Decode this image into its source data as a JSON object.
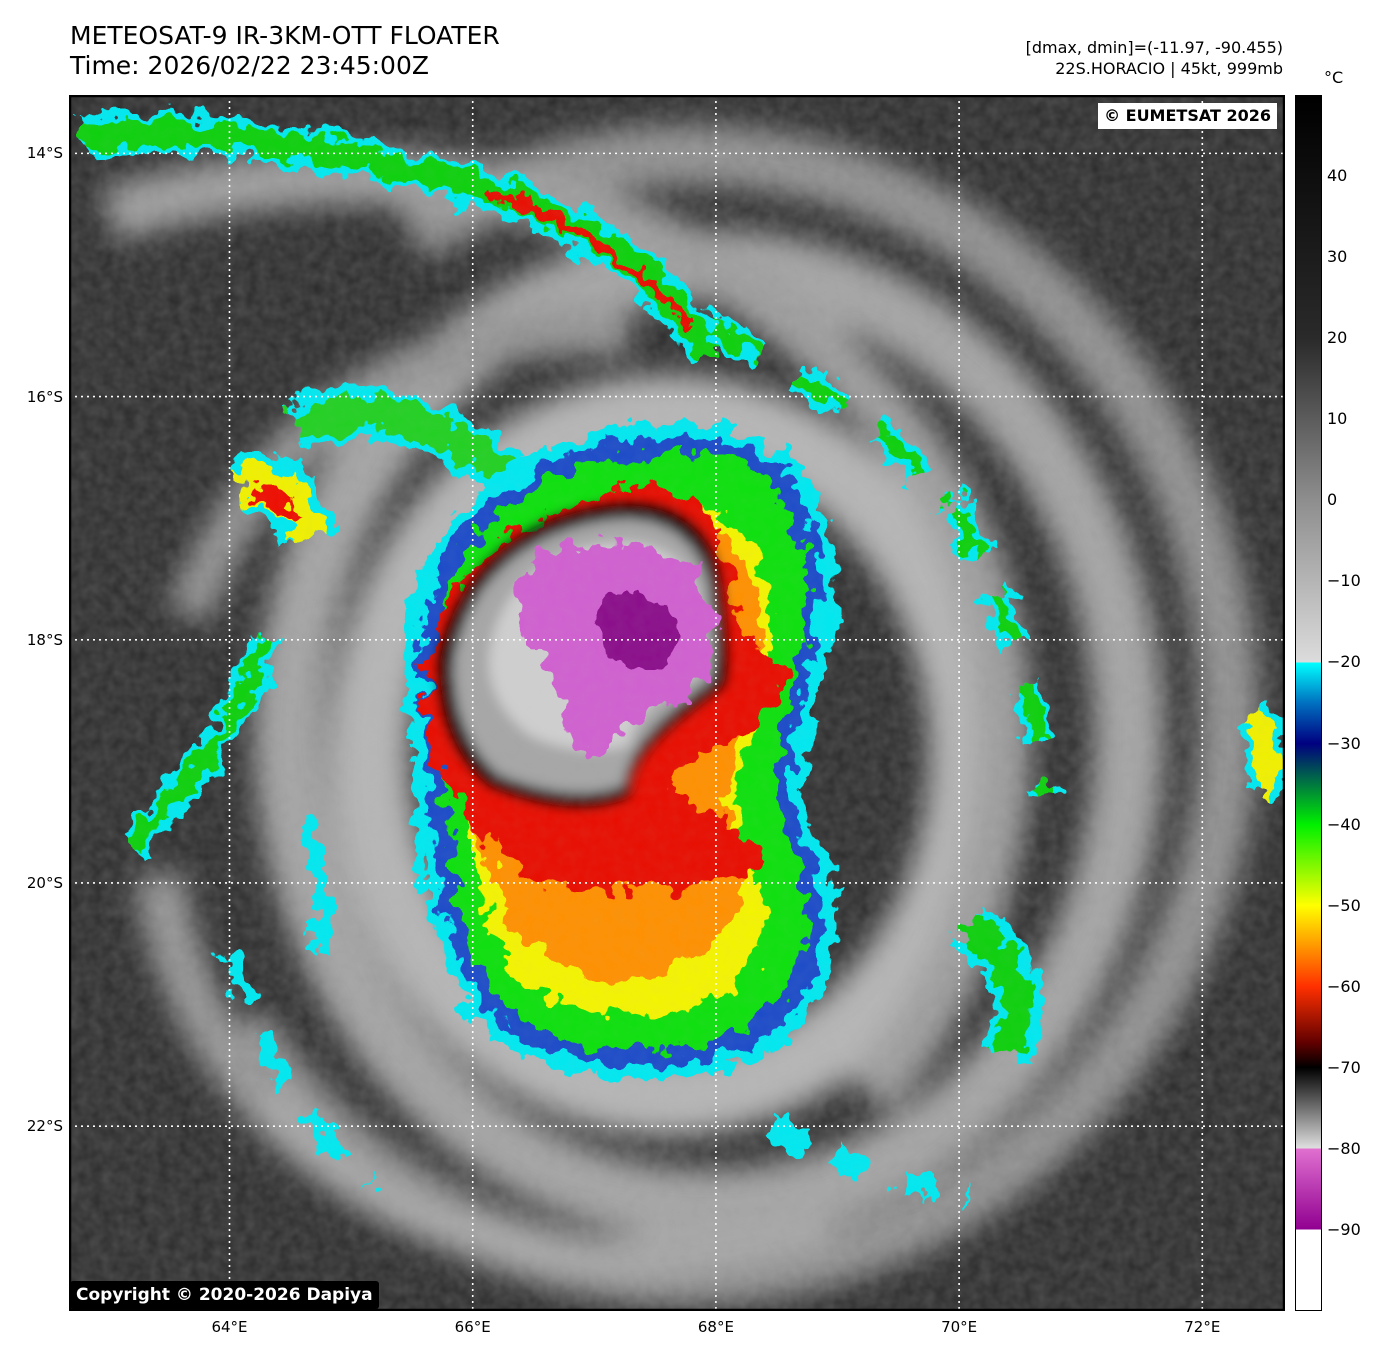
{
  "header": {
    "title_line1": "METEOSAT-9 IR-3KM-OTT FLOATER",
    "title_line2": "Time: 2026/02/22 23:45:00Z",
    "info_line1": "[dmax, dmin]=(-11.97, -90.455)",
    "info_line2": "22S.HORACIO | 45kt, 999mb"
  },
  "map": {
    "lat_labels": [
      "14°S",
      "16°S",
      "18°S",
      "20°S",
      "22°S"
    ],
    "lon_labels": [
      "64°E",
      "66°E",
      "68°E",
      "70°E",
      "72°E"
    ],
    "lat_values": [
      -14,
      -16,
      -18,
      -20,
      -22
    ],
    "lon_values": [
      64,
      66,
      68,
      70,
      72
    ],
    "lon_range": [
      62.68,
      72.68
    ],
    "lat_range": [
      -13.52,
      -23.52
    ],
    "grid": "dotted-white",
    "storm_center": {
      "lon": 67.3,
      "lat": -18.0
    },
    "colors": {
      "background_dark": "#2b2b2b",
      "cloud_gray": "#b8b8b8",
      "cyan": "#00f0ff",
      "blue": "#1e4cc8",
      "green": "#10e010",
      "yellow": "#f8f800",
      "orange": "#ff9000",
      "red": "#ee1000",
      "black": "#000000",
      "magenta": "#d060d0",
      "purple": "#8a0a8a"
    }
  },
  "colorbar": {
    "unit": "°C",
    "range": [
      -100,
      50
    ],
    "ticks": [
      "40",
      "30",
      "20",
      "10",
      "0",
      "−10",
      "−20",
      "−30",
      "−40",
      "−50",
      "−60",
      "−70",
      "−80",
      "−90"
    ],
    "tick_values": [
      40,
      30,
      20,
      10,
      0,
      -10,
      -20,
      -30,
      -40,
      -50,
      -60,
      -70,
      -80,
      -90
    ],
    "stops": [
      {
        "t": 50,
        "color": "#000000"
      },
      {
        "t": 20,
        "color": "#2a2a2a"
      },
      {
        "t": 0,
        "color": "#8e8e8e"
      },
      {
        "t": -20,
        "color": "#dcdcdc"
      },
      {
        "t": -20.01,
        "color": "#00ffff"
      },
      {
        "t": -25,
        "color": "#0070c0"
      },
      {
        "t": -30,
        "color": "#000080"
      },
      {
        "t": -40,
        "color": "#00f000"
      },
      {
        "t": -50,
        "color": "#ffff00"
      },
      {
        "t": -60,
        "color": "#ff3000"
      },
      {
        "t": -67,
        "color": "#600000"
      },
      {
        "t": -70,
        "color": "#000000"
      },
      {
        "t": -75,
        "color": "#707070"
      },
      {
        "t": -80,
        "color": "#e0e0e0"
      },
      {
        "t": -80.01,
        "color": "#e070d0"
      },
      {
        "t": -90,
        "color": "#900090"
      },
      {
        "t": -90.01,
        "color": "#ffffff"
      },
      {
        "t": -100,
        "color": "#ffffff"
      }
    ]
  },
  "badges": {
    "eumetsat": "© EUMETSAT 2026",
    "dapiya": "Copyright © 2020-2026 Dapiya"
  }
}
